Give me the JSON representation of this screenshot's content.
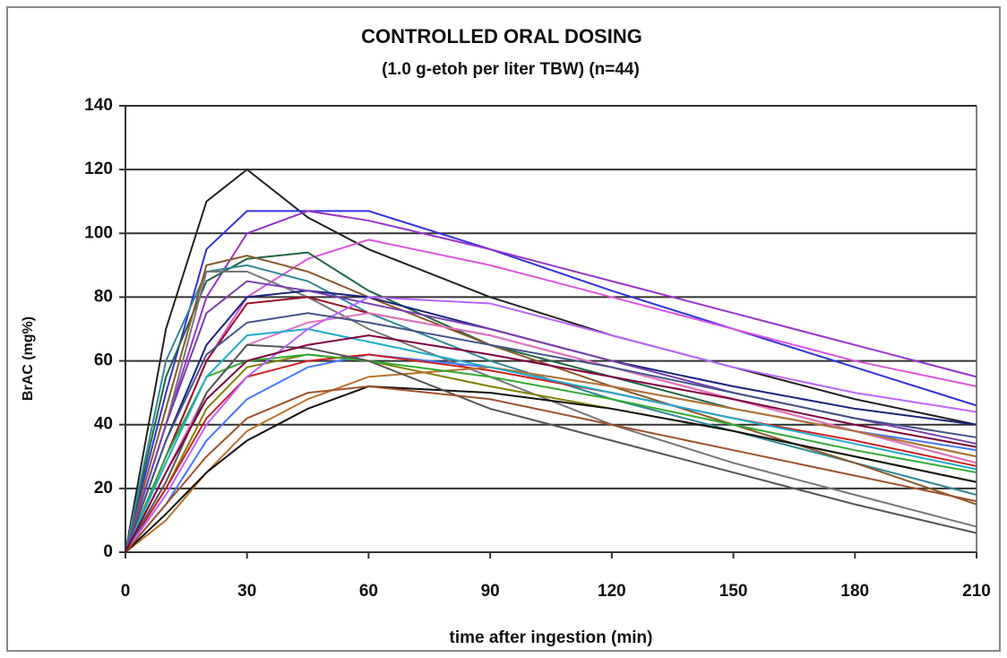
{
  "chart_data": {
    "type": "line",
    "title": "CONTROLLED ORAL DOSING",
    "subtitle": "(1.0 g-etoh per liter TBW) (n=44)",
    "x_label": "time after ingestion (min)",
    "y_label": "BrAC (mg%)",
    "x": [
      0,
      10,
      20,
      30,
      45,
      60,
      90,
      120,
      150,
      180,
      210
    ],
    "xlim": [
      0,
      210
    ],
    "xticks": [
      0,
      30,
      60,
      90,
      120,
      150,
      180,
      210
    ],
    "ylim": [
      0,
      140
    ],
    "yticks": [
      0,
      20,
      40,
      60,
      80,
      100,
      120,
      140
    ],
    "grid": true,
    "series": [
      {
        "color": "#222222",
        "values": [
          0,
          70,
          110,
          120,
          105,
          95,
          80,
          68,
          58,
          48,
          40
        ]
      },
      {
        "color": "#3333dd",
        "values": [
          0,
          50,
          95,
          107,
          107,
          107,
          95,
          82,
          70,
          58,
          46
        ]
      },
      {
        "color": "#9933cc",
        "values": [
          0,
          40,
          80,
          100,
          107,
          104,
          95,
          85,
          75,
          65,
          55
        ]
      },
      {
        "color": "#dd55dd",
        "values": [
          0,
          30,
          60,
          80,
          92,
          98,
          90,
          80,
          70,
          60,
          52
        ]
      },
      {
        "color": "#226644",
        "values": [
          0,
          55,
          85,
          92,
          94,
          82,
          65,
          55,
          45,
          38,
          30
        ]
      },
      {
        "color": "#338899",
        "values": [
          0,
          60,
          88,
          90,
          85,
          75,
          60,
          48,
          38,
          28,
          18
        ]
      },
      {
        "color": "#8b5a2b",
        "values": [
          0,
          45,
          90,
          93,
          88,
          80,
          65,
          52,
          40,
          28,
          15
        ]
      },
      {
        "color": "#777777",
        "values": [
          0,
          40,
          88,
          88,
          80,
          70,
          55,
          40,
          28,
          18,
          8
        ]
      },
      {
        "color": "#991122",
        "values": [
          0,
          30,
          60,
          78,
          80,
          75,
          68,
          58,
          48,
          38,
          28
        ]
      },
      {
        "color": "#1a237e",
        "values": [
          0,
          35,
          65,
          80,
          82,
          80,
          70,
          60,
          52,
          45,
          40
        ]
      },
      {
        "color": "#808000",
        "values": [
          0,
          20,
          45,
          58,
          62,
          60,
          52,
          45,
          38,
          30,
          22
        ]
      },
      {
        "color": "#e377c2",
        "values": [
          0,
          25,
          50,
          65,
          72,
          75,
          68,
          58,
          48,
          38,
          28
        ]
      },
      {
        "color": "#4477ff",
        "values": [
          0,
          15,
          35,
          48,
          58,
          62,
          58,
          52,
          45,
          38,
          32
        ]
      },
      {
        "color": "#cc2222",
        "values": [
          0,
          20,
          42,
          55,
          60,
          62,
          57,
          50,
          42,
          35,
          27
        ]
      },
      {
        "color": "#b8732e",
        "values": [
          0,
          10,
          25,
          38,
          48,
          55,
          58,
          52,
          45,
          38,
          30
        ]
      },
      {
        "color": "#33aa33",
        "values": [
          0,
          30,
          55,
          60,
          62,
          60,
          55,
          48,
          40,
          32,
          25
        ]
      },
      {
        "color": "#22aacc",
        "values": [
          0,
          28,
          55,
          68,
          70,
          66,
          58,
          50,
          42,
          34,
          26
        ]
      },
      {
        "color": "#111111",
        "values": [
          0,
          12,
          25,
          35,
          45,
          52,
          50,
          45,
          38,
          30,
          22
        ]
      },
      {
        "color": "#7a3fb0",
        "values": [
          0,
          40,
          75,
          85,
          82,
          78,
          70,
          60,
          50,
          42,
          34
        ]
      },
      {
        "color": "#555555",
        "values": [
          0,
          22,
          50,
          65,
          64,
          60,
          45,
          35,
          25,
          15,
          6
        ]
      },
      {
        "color": "#bb66ff",
        "values": [
          0,
          18,
          40,
          55,
          70,
          80,
          78,
          68,
          58,
          50,
          44
        ]
      },
      {
        "color": "#a0522d",
        "values": [
          0,
          15,
          30,
          42,
          50,
          52,
          48,
          40,
          32,
          24,
          16
        ]
      },
      {
        "color": "#445588",
        "values": [
          0,
          35,
          62,
          72,
          75,
          72,
          65,
          58,
          50,
          42,
          36
        ]
      },
      {
        "color": "#800040",
        "values": [
          0,
          25,
          48,
          60,
          65,
          68,
          62,
          55,
          48,
          40,
          33
        ]
      }
    ]
  }
}
